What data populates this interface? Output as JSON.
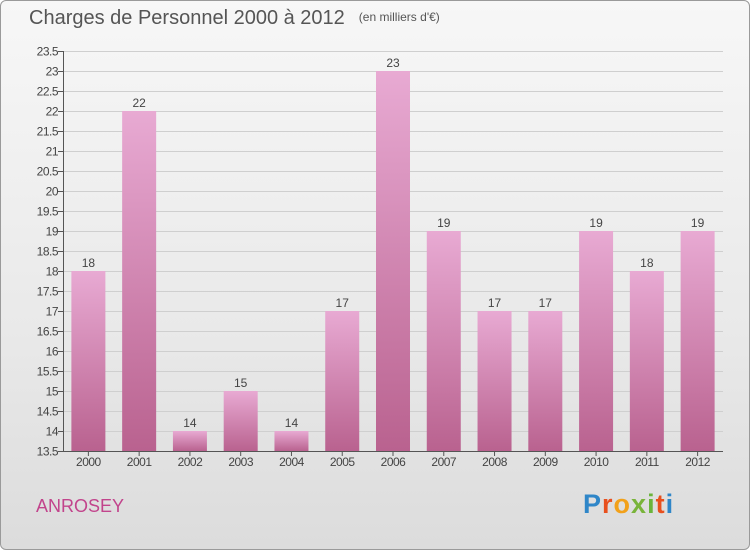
{
  "title": "Charges de Personnel 2000 à 2012",
  "subtitle": "(en milliers d'€)",
  "commune": "ANROSEY",
  "brand": {
    "letters": [
      "P",
      "r",
      "o",
      "x",
      "i",
      "t",
      "i"
    ],
    "colors": [
      "#2f86c8",
      "#e8501e",
      "#f2a11a",
      "#79b43a",
      "#6ab43b",
      "#e8501e",
      "#2f86c8"
    ]
  },
  "colors": {
    "bar_top": "#e8aad3",
    "bar_bottom": "#b9628f",
    "title": "#555555",
    "commune": "#c2448c"
  },
  "chart_data": {
    "type": "bar",
    "title": "Charges de Personnel 2000 à 2012",
    "subtitle": "(en milliers d'€)",
    "categories": [
      "2000",
      "2001",
      "2002",
      "2003",
      "2004",
      "2005",
      "2006",
      "2007",
      "2008",
      "2009",
      "2010",
      "2011",
      "2012"
    ],
    "values": [
      18,
      22,
      14,
      15,
      14,
      17,
      23,
      19,
      17,
      17,
      19,
      18,
      19
    ],
    "ylim": [
      13.5,
      23.5
    ],
    "yticks": [
      13.5,
      14,
      14.5,
      15,
      15.5,
      16,
      16.5,
      17,
      17.5,
      18,
      18.5,
      19,
      19.5,
      20,
      20.5,
      21,
      21.5,
      22,
      22.5,
      23,
      23.5
    ],
    "grid": true,
    "xlabel": "",
    "ylabel": ""
  }
}
